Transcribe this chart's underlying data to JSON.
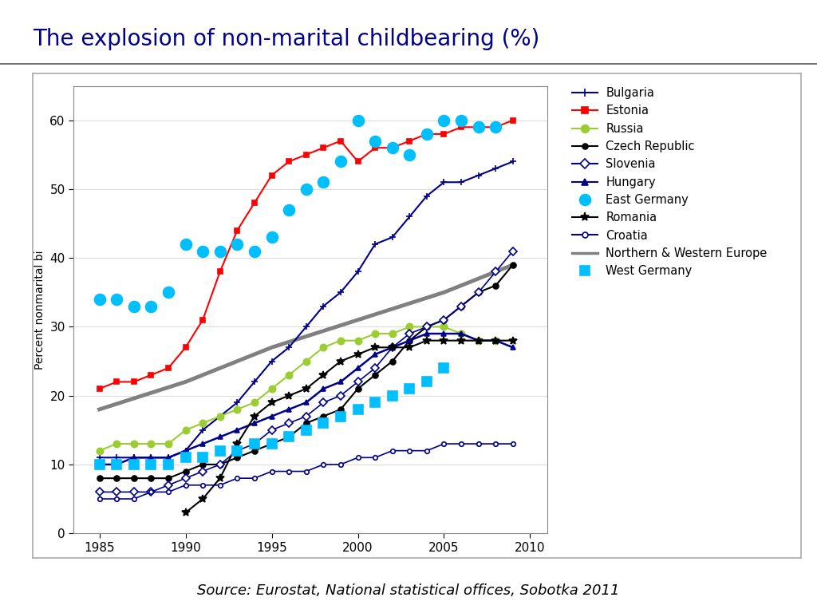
{
  "title": "The explosion of non-marital childbearing (%)",
  "title_color": "#00008B",
  "source_text": "Source: Eurostat, National statistical offices, Sobotka 2011",
  "ylabel": "Percent nonmarital bi",
  "xlim": [
    1983.5,
    2011
  ],
  "ylim": [
    0,
    65
  ],
  "yticks": [
    0,
    10,
    20,
    30,
    40,
    50,
    60
  ],
  "xticks": [
    1985,
    1990,
    1995,
    2000,
    2005,
    2010
  ],
  "series": {
    "Bulgaria": {
      "color": "#00008B",
      "marker": "+",
      "markersize": 6,
      "linewidth": 1.5,
      "linestyle": "-",
      "fillstyle": "full",
      "x": [
        1985,
        1986,
        1987,
        1988,
        1989,
        1990,
        1991,
        1992,
        1993,
        1994,
        1995,
        1996,
        1997,
        1998,
        1999,
        2000,
        2001,
        2002,
        2003,
        2004,
        2005,
        2006,
        2007,
        2008,
        2009
      ],
      "y": [
        11,
        11,
        11,
        11,
        11,
        12,
        15,
        17,
        19,
        22,
        25,
        27,
        30,
        33,
        35,
        38,
        42,
        43,
        46,
        49,
        51,
        51,
        52,
        53,
        54
      ]
    },
    "Estonia": {
      "color": "#FF0000",
      "marker": "s",
      "markersize": 5,
      "linewidth": 1.5,
      "linestyle": "-",
      "fillstyle": "full",
      "x": [
        1985,
        1986,
        1987,
        1988,
        1989,
        1990,
        1991,
        1992,
        1993,
        1994,
        1995,
        1996,
        1997,
        1998,
        1999,
        2000,
        2001,
        2002,
        2003,
        2004,
        2005,
        2006,
        2007,
        2008,
        2009
      ],
      "y": [
        21,
        22,
        22,
        23,
        24,
        27,
        31,
        38,
        44,
        48,
        52,
        54,
        55,
        56,
        57,
        54,
        56,
        56,
        57,
        58,
        58,
        59,
        59,
        59,
        60
      ]
    },
    "Russia": {
      "color": "#9ACD32",
      "marker": "o",
      "markersize": 6,
      "linewidth": 1.5,
      "linestyle": "-",
      "fillstyle": "full",
      "x": [
        1985,
        1986,
        1987,
        1988,
        1989,
        1990,
        1991,
        1992,
        1993,
        1994,
        1995,
        1996,
        1997,
        1998,
        1999,
        2000,
        2001,
        2002,
        2003,
        2004,
        2005,
        2006,
        2007,
        2008
      ],
      "y": [
        12,
        13,
        13,
        13,
        13,
        15,
        16,
        17,
        18,
        19,
        21,
        23,
        25,
        27,
        28,
        28,
        29,
        29,
        30,
        30,
        30,
        29,
        28,
        28
      ]
    },
    "Czech Republic": {
      "color": "#000000",
      "marker": "o",
      "markersize": 5,
      "linewidth": 1.5,
      "linestyle": "-",
      "fillstyle": "full",
      "x": [
        1985,
        1986,
        1987,
        1988,
        1989,
        1990,
        1991,
        1992,
        1993,
        1994,
        1995,
        1996,
        1997,
        1998,
        1999,
        2000,
        2001,
        2002,
        2003,
        2004,
        2005,
        2006,
        2007,
        2008,
        2009
      ],
      "y": [
        8,
        8,
        8,
        8,
        8,
        9,
        10,
        10,
        11,
        12,
        13,
        14,
        16,
        17,
        18,
        21,
        23,
        25,
        28,
        30,
        31,
        33,
        35,
        36,
        39
      ]
    },
    "Slovenia": {
      "color": "#00008B",
      "marker": "D",
      "markersize": 5,
      "linewidth": 1.2,
      "linestyle": "-",
      "fillstyle": "none",
      "x": [
        1985,
        1986,
        1987,
        1988,
        1989,
        1990,
        1991,
        1992,
        1993,
        1994,
        1995,
        1996,
        1997,
        1998,
        1999,
        2000,
        2001,
        2002,
        2003,
        2004,
        2005,
        2006,
        2007,
        2008,
        2009
      ],
      "y": [
        6,
        6,
        6,
        6,
        7,
        8,
        9,
        10,
        12,
        13,
        15,
        16,
        17,
        19,
        20,
        22,
        24,
        27,
        29,
        30,
        31,
        33,
        35,
        38,
        41
      ]
    },
    "Hungary": {
      "color": "#00008B",
      "marker": "^",
      "markersize": 5,
      "linewidth": 1.8,
      "linestyle": "-",
      "fillstyle": "full",
      "x": [
        1985,
        1986,
        1987,
        1988,
        1989,
        1990,
        1991,
        1992,
        1993,
        1994,
        1995,
        1996,
        1997,
        1998,
        1999,
        2000,
        2001,
        2002,
        2003,
        2004,
        2005,
        2006,
        2007,
        2008,
        2009
      ],
      "y": [
        10,
        10,
        11,
        11,
        11,
        12,
        13,
        14,
        15,
        16,
        17,
        18,
        19,
        21,
        22,
        24,
        26,
        27,
        28,
        29,
        29,
        29,
        28,
        28,
        27
      ]
    },
    "East Germany": {
      "color": "#00BFFF",
      "marker": "o",
      "markersize": 10,
      "linewidth": 0,
      "linestyle": "none",
      "fillstyle": "full",
      "x": [
        1985,
        1986,
        1987,
        1988,
        1989,
        1990,
        1991,
        1992,
        1993,
        1994,
        1995,
        1996,
        1997,
        1998,
        1999,
        2000,
        2001,
        2002,
        2003,
        2004,
        2005,
        2006,
        2007,
        2008
      ],
      "y": [
        34,
        34,
        33,
        33,
        35,
        42,
        41,
        41,
        42,
        41,
        43,
        47,
        50,
        51,
        54,
        60,
        57,
        56,
        55,
        58,
        60,
        60,
        59,
        59
      ]
    },
    "Romania": {
      "color": "#000000",
      "marker": "*",
      "markersize": 7,
      "linewidth": 1.5,
      "linestyle": "-",
      "fillstyle": "full",
      "x": [
        1990,
        1991,
        1992,
        1993,
        1994,
        1995,
        1996,
        1997,
        1998,
        1999,
        2000,
        2001,
        2002,
        2003,
        2004,
        2005,
        2006,
        2007,
        2008,
        2009
      ],
      "y": [
        3,
        5,
        8,
        13,
        17,
        19,
        20,
        21,
        23,
        25,
        26,
        27,
        27,
        27,
        28,
        28,
        28,
        28,
        28,
        28
      ]
    },
    "Croatia": {
      "color": "#00008B",
      "marker": "o",
      "markersize": 4,
      "linewidth": 1.2,
      "linestyle": "-",
      "fillstyle": "none",
      "x": [
        1985,
        1986,
        1987,
        1988,
        1989,
        1990,
        1991,
        1992,
        1993,
        1994,
        1995,
        1996,
        1997,
        1998,
        1999,
        2000,
        2001,
        2002,
        2003,
        2004,
        2005,
        2006,
        2007,
        2008,
        2009
      ],
      "y": [
        5,
        5,
        5,
        6,
        6,
        7,
        7,
        7,
        8,
        8,
        9,
        9,
        9,
        10,
        10,
        11,
        11,
        12,
        12,
        12,
        13,
        13,
        13,
        13,
        13
      ]
    },
    "Northern & Western Europe": {
      "color": "#808080",
      "marker": "none",
      "markersize": 0,
      "linewidth": 3.5,
      "linestyle": "-",
      "fillstyle": "full",
      "x": [
        1985,
        1990,
        1995,
        2000,
        2005,
        2009
      ],
      "y": [
        18,
        22,
        27,
        31,
        35,
        39
      ]
    },
    "West Germany": {
      "color": "#00BFFF",
      "marker": "s",
      "markersize": 8,
      "linewidth": 0,
      "linestyle": "none",
      "fillstyle": "full",
      "x": [
        1985,
        1986,
        1987,
        1988,
        1989,
        1990,
        1991,
        1992,
        1993,
        1994,
        1995,
        1996,
        1997,
        1998,
        1999,
        2000,
        2001,
        2002,
        2003,
        2004,
        2005
      ],
      "y": [
        10,
        10,
        10,
        10,
        10,
        11,
        11,
        12,
        12,
        13,
        13,
        14,
        15,
        16,
        17,
        18,
        19,
        20,
        21,
        22,
        24
      ]
    }
  },
  "legend_order": [
    "Bulgaria",
    "Estonia",
    "Russia",
    "Czech Republic",
    "Slovenia",
    "Hungary",
    "East Germany",
    "Romania",
    "Croatia",
    "Northern & Western Europe",
    "West Germany"
  ],
  "legend_markers": {
    "Bulgaria": {
      "color": "#00008B",
      "ls": "-",
      "marker": "+",
      "ms": 7,
      "fillstyle": "full"
    },
    "Estonia": {
      "color": "#FF0000",
      "ls": "-",
      "marker": "s",
      "ms": 6,
      "fillstyle": "full"
    },
    "Russia": {
      "color": "#9ACD32",
      "ls": "-",
      "marker": "o",
      "ms": 7,
      "fillstyle": "full"
    },
    "Czech Republic": {
      "color": "#000000",
      "ls": "-",
      "marker": "o",
      "ms": 5,
      "fillstyle": "full"
    },
    "Slovenia": {
      "color": "#00008B",
      "ls": "-",
      "marker": "D",
      "ms": 6,
      "fillstyle": "none"
    },
    "Hungary": {
      "color": "#00008B",
      "ls": "-",
      "marker": "^",
      "ms": 6,
      "fillstyle": "full"
    },
    "East Germany": {
      "color": "#00BFFF",
      "ls": "none",
      "marker": "o",
      "ms": 10,
      "fillstyle": "full"
    },
    "Romania": {
      "color": "#000000",
      "ls": "-",
      "marker": "*",
      "ms": 8,
      "fillstyle": "full"
    },
    "Croatia": {
      "color": "#00008B",
      "ls": "-",
      "marker": "o",
      "ms": 5,
      "fillstyle": "none"
    },
    "Northern & Western Europe": {
      "color": "#808080",
      "ls": "-",
      "marker": "none",
      "ms": 0,
      "fillstyle": "full"
    },
    "West Germany": {
      "color": "#00BFFF",
      "ls": "none",
      "marker": "s",
      "ms": 9,
      "fillstyle": "full"
    }
  }
}
